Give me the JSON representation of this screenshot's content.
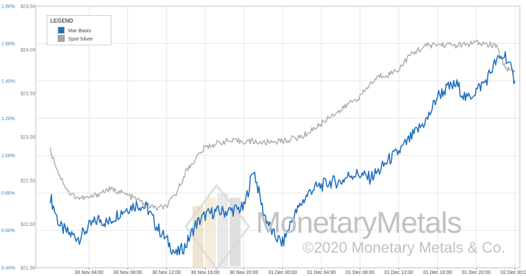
{
  "chart_data": {
    "type": "line",
    "legend": {
      "title": "LEGEND",
      "position": "top-left",
      "entries": [
        {
          "label": "Mar Basis",
          "color": "#1e6fbf"
        },
        {
          "label": "Spot Silver",
          "color": "#a8a8a8"
        }
      ]
    },
    "y_left": {
      "ticks": [
        "1.80%",
        "1.60%",
        "1.40%",
        "1.20%",
        "1.00%",
        "0.80%",
        "0.60%",
        "0.40%"
      ],
      "range": [
        0.4,
        1.8
      ],
      "unit": "%"
    },
    "y_right": {
      "ticks": [
        "$24.50",
        "$24.00",
        "$23.50",
        "$23.00",
        "$22.50",
        "$22.00",
        "$21.50"
      ],
      "range": [
        21.5,
        24.5
      ],
      "unit": "$"
    },
    "x_ticks": [
      "30 Nov 04:00",
      "30 Nov 08:00",
      "30 Nov 12:00",
      "30 Nov 16:00",
      "30 Nov 20:00",
      "01 Dec 00:00",
      "01 Dec 04:00",
      "01 Dec 08:00",
      "01 Dec 12:00",
      "01 Dec 16:00",
      "01 Dec 20:00",
      "02 Dec 00:00"
    ],
    "x_range_hours": [
      -1.5,
      48.5
    ],
    "grid": true,
    "series": [
      {
        "name": "Mar Basis",
        "axis": "left",
        "x_hours": [
          0,
          1,
          2,
          3,
          4,
          5,
          6,
          7,
          8,
          9,
          10,
          11,
          12,
          13,
          14,
          15,
          16,
          17,
          18,
          19,
          20,
          21,
          22,
          23,
          24,
          25,
          26,
          27,
          28,
          29,
          30,
          31,
          32,
          33,
          34,
          35,
          36,
          37,
          38,
          39,
          40,
          41,
          42,
          43,
          44,
          45,
          46,
          47,
          48
        ],
        "values": [
          0.78,
          0.62,
          0.58,
          0.56,
          0.62,
          0.66,
          0.64,
          0.69,
          0.72,
          0.74,
          0.72,
          0.62,
          0.55,
          0.47,
          0.52,
          0.63,
          0.68,
          0.7,
          0.7,
          0.71,
          0.72,
          0.93,
          0.7,
          0.58,
          0.53,
          0.66,
          0.75,
          0.82,
          0.84,
          0.86,
          0.86,
          0.9,
          0.9,
          0.88,
          0.92,
          0.98,
          1.02,
          1.08,
          1.14,
          1.2,
          1.32,
          1.36,
          1.38,
          1.3,
          1.35,
          1.4,
          1.5,
          1.54,
          1.4
        ]
      },
      {
        "name": "Spot Silver",
        "axis": "right",
        "x_hours": [
          0,
          1,
          2,
          3,
          4,
          5,
          6,
          7,
          8,
          9,
          10,
          11,
          12,
          13,
          14,
          15,
          16,
          17,
          18,
          19,
          20,
          21,
          22,
          23,
          24,
          25,
          26,
          27,
          28,
          29,
          30,
          31,
          32,
          33,
          34,
          35,
          36,
          37,
          38,
          39,
          40,
          41,
          42,
          43,
          44,
          45,
          46,
          47,
          48
        ],
        "values": [
          22.85,
          22.55,
          22.35,
          22.3,
          22.3,
          22.35,
          22.4,
          22.38,
          22.33,
          22.28,
          22.22,
          22.18,
          22.2,
          22.35,
          22.6,
          22.75,
          22.88,
          22.92,
          22.95,
          22.95,
          22.95,
          22.95,
          22.93,
          22.95,
          22.95,
          22.98,
          23.0,
          23.08,
          23.15,
          23.25,
          23.3,
          23.4,
          23.46,
          23.6,
          23.7,
          23.72,
          23.78,
          23.92,
          24.0,
          24.05,
          24.06,
          24.06,
          24.05,
          24.06,
          24.08,
          24.06,
          24.05,
          23.8,
          23.75
        ]
      }
    ]
  },
  "watermark": {
    "brand": "MonetaryMetals",
    "copyright": "©2020 Monetary Metals & Co."
  }
}
